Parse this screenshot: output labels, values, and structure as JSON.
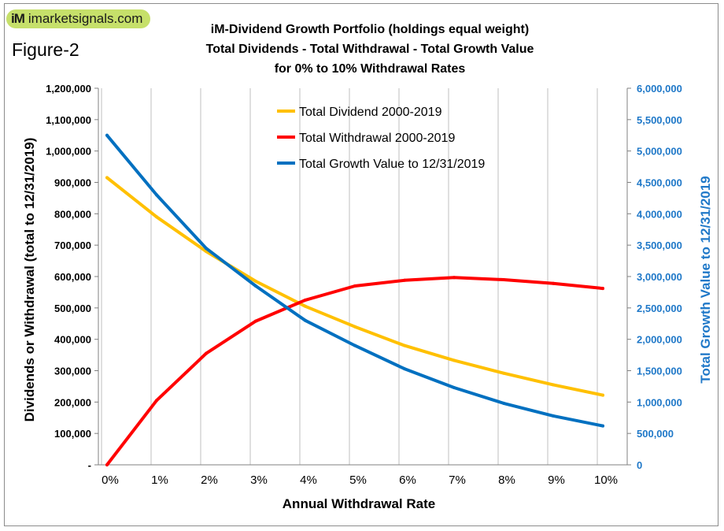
{
  "header": {
    "logo_mark": "iM",
    "logo_text": "imarketsignals.com",
    "figure_label": "Figure-2"
  },
  "chart_data": {
    "type": "line",
    "title": "iM-Dividend Growth Portfolio  (holdings equal weight)",
    "subtitle_1": "Total Dividends - Total Withdrawal - Total Growth Value",
    "subtitle_2": "for 0% to 10% Withdrawal Rates",
    "xlabel": "Annual Withdrawal Rate",
    "ylabel_left": "Dividends or Withdrawal  (total to 12/31/2019)",
    "ylabel_right": "Total Growth Value to 12/31/2019",
    "categories": [
      "0%",
      "1%",
      "2%",
      "3%",
      "4%",
      "5%",
      "6%",
      "7%",
      "8%",
      "9%",
      "10%"
    ],
    "ylim_left": [
      0,
      1200000
    ],
    "ylim_right": [
      0,
      6000000
    ],
    "left_ticks": [
      "-",
      "100,000",
      "200,000",
      "300,000",
      "400,000",
      "500,000",
      "600,000",
      "700,000",
      "800,000",
      "900,000",
      "1,000,000",
      "1,100,000",
      "1,200,000"
    ],
    "right_ticks": [
      "0",
      "500,000",
      "1,000,000",
      "1,500,000",
      "2,000,000",
      "2,500,000",
      "3,000,000",
      "3,500,000",
      "4,000,000",
      "4,500,000",
      "5,000,000",
      "5,500,000",
      "6,000,000"
    ],
    "grid": "vertical",
    "legend_position": "top-center",
    "series": [
      {
        "name": "Total Dividend 2000-2019",
        "axis": "left",
        "color": "#ffc000",
        "values": [
          915000,
          790000,
          680000,
          585000,
          505000,
          440000,
          380000,
          333000,
          292000,
          255000,
          222000
        ]
      },
      {
        "name": "Total Withdrawal 2000-2019",
        "axis": "left",
        "color": "#ff0000",
        "values": [
          0,
          205000,
          355000,
          458000,
          525000,
          570000,
          588000,
          597000,
          590000,
          578000,
          562000
        ]
      },
      {
        "name": "Total Growth Value to 12/31/2019",
        "axis": "right",
        "color": "#0070c0",
        "values": [
          5250000,
          4300000,
          3450000,
          2850000,
          2300000,
          1900000,
          1530000,
          1230000,
          980000,
          780000,
          620000
        ]
      }
    ]
  }
}
